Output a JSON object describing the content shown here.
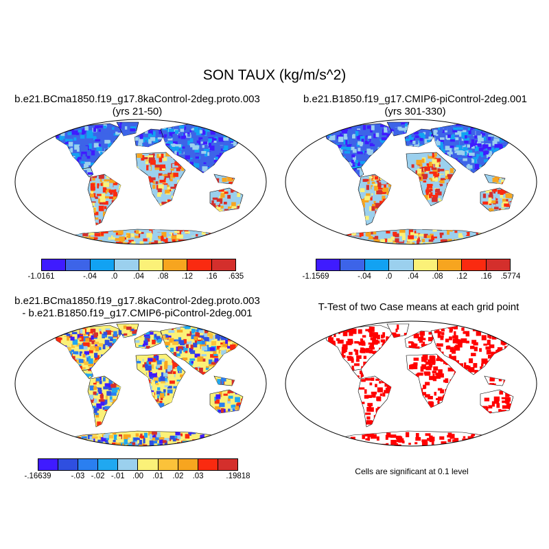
{
  "figure": {
    "title": "SON TAUX (kg/m/s^2)",
    "panels": [
      {
        "title_line1": "b.e21.BCma1850.f19_g17.8kaControl-2deg.proto.003",
        "title_line2": "(yrs 21-50)",
        "colorbar": {
          "colors": [
            "#3f1bff",
            "#3d64e8",
            "#12a2f2",
            "#9bd0ee",
            "#fbf178",
            "#f7a51f",
            "#fa2a10",
            "#d42f2c"
          ],
          "labels": [
            "-1.0161",
            "-.04",
            ".0",
            ".04",
            ".08",
            ".12",
            ".16",
            ".635"
          ]
        }
      },
      {
        "title_line1": "b.e21.B1850.f19_g17.CMIP6-piControl-2deg.001",
        "title_line2": "(yrs 301-330)",
        "colorbar": {
          "colors": [
            "#3f1bff",
            "#3d64e8",
            "#12a2f2",
            "#9bd0ee",
            "#fbf178",
            "#f7a51f",
            "#fa2a10",
            "#d42f2c"
          ],
          "labels": [
            "-1.1569",
            "-.04",
            ".0",
            ".04",
            ".08",
            ".12",
            ".16",
            ".5774"
          ]
        }
      },
      {
        "title_line1": "b.e21.BCma1850.f19_g17.8kaControl-2deg.proto.003",
        "title_line2": "- b.e21.B1850.f19_g17.CMIP6-piControl-2deg.001",
        "colorbar": {
          "colors": [
            "#3f1bff",
            "#2f4fe0",
            "#2a7ff0",
            "#20a8f0",
            "#9bd0ee",
            "#fbf178",
            "#fbc23a",
            "#f7a51f",
            "#fa2a10",
            "#d42f2c"
          ],
          "labels": [
            "-.16639",
            "-.03",
            "-.02",
            "-.01",
            ".00",
            ".01",
            ".02",
            ".03",
            ".19818"
          ]
        }
      },
      {
        "title_line1": "T-Test of two Case means at each grid point",
        "note": "Cells are significant at 0.1 level",
        "color": "#ff0000"
      }
    ]
  }
}
